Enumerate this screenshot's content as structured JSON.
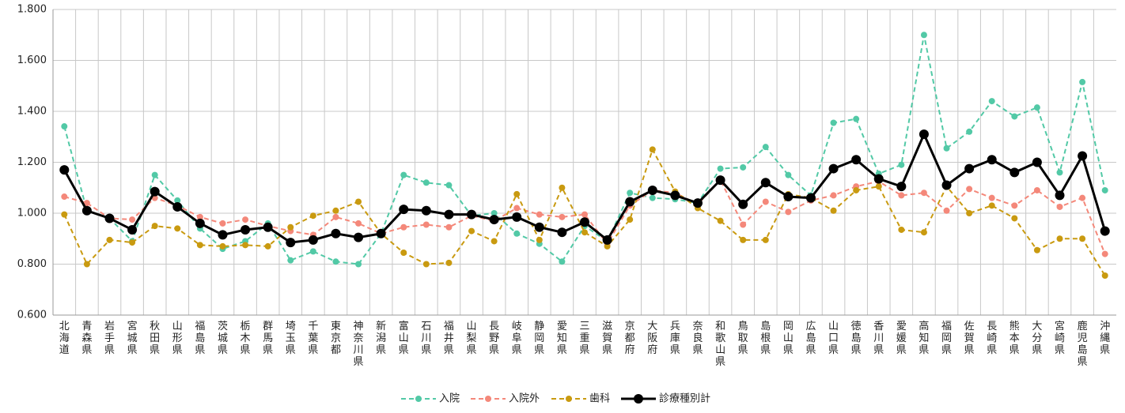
{
  "chart_data": {
    "type": "line",
    "categories": [
      "北海道",
      "青森県",
      "岩手県",
      "宮城県",
      "秋田県",
      "山形県",
      "福島県",
      "茨城県",
      "栃木県",
      "群馬県",
      "埼玉県",
      "千葉県",
      "東京都",
      "神奈川県",
      "新潟県",
      "富山県",
      "石川県",
      "福井県",
      "山梨県",
      "長野県",
      "岐阜県",
      "静岡県",
      "愛知県",
      "三重県",
      "滋賀県",
      "京都府",
      "大阪府",
      "兵庫県",
      "奈良県",
      "和歌山県",
      "鳥取県",
      "島根県",
      "岡山県",
      "広島県",
      "山口県",
      "徳島県",
      "香川県",
      "愛媛県",
      "高知県",
      "福岡県",
      "佐賀県",
      "長崎県",
      "熊本県",
      "大分県",
      "宮崎県",
      "鹿児島県",
      "沖縄県"
    ],
    "series": [
      {
        "name": "入院",
        "color": "#52c9a6",
        "dashed": true,
        "values": [
          1.341,
          1.01,
          0.98,
          0.89,
          1.15,
          1.05,
          0.94,
          0.86,
          0.89,
          0.96,
          0.815,
          0.85,
          0.81,
          0.8,
          0.92,
          1.15,
          1.12,
          1.11,
          0.99,
          1.0,
          0.92,
          0.88,
          0.81,
          0.95,
          0.89,
          1.08,
          1.06,
          1.055,
          1.04,
          1.175,
          1.18,
          1.26,
          1.15,
          1.07,
          1.355,
          1.37,
          1.155,
          1.19,
          1.7,
          1.255,
          1.32,
          1.44,
          1.38,
          1.415,
          1.16,
          1.515,
          1.09
        ]
      },
      {
        "name": "入院外",
        "color": "#f4887a",
        "dashed": true,
        "values": [
          1.065,
          1.04,
          0.98,
          0.975,
          1.06,
          1.03,
          0.985,
          0.96,
          0.975,
          0.95,
          0.93,
          0.915,
          0.985,
          0.96,
          0.92,
          0.945,
          0.955,
          0.945,
          0.99,
          0.97,
          1.02,
          0.995,
          0.985,
          0.995,
          0.88,
          1.03,
          1.09,
          1.08,
          1.035,
          1.13,
          0.955,
          1.045,
          1.005,
          1.05,
          1.07,
          1.105,
          1.125,
          1.07,
          1.08,
          1.01,
          1.095,
          1.06,
          1.03,
          1.09,
          1.025,
          1.06,
          0.84
        ]
      },
      {
        "name": "歯科",
        "color": "#c99a10",
        "dashed": true,
        "values": [
          0.995,
          0.8,
          0.895,
          0.885,
          0.95,
          0.94,
          0.875,
          0.87,
          0.875,
          0.87,
          0.945,
          0.99,
          1.01,
          1.045,
          0.92,
          0.845,
          0.8,
          0.805,
          0.93,
          0.89,
          1.075,
          0.895,
          1.1,
          0.925,
          0.87,
          0.975,
          1.25,
          1.085,
          1.02,
          0.97,
          0.895,
          0.895,
          1.075,
          1.06,
          1.01,
          1.09,
          1.105,
          0.935,
          0.925,
          1.105,
          1.0,
          1.03,
          0.98,
          0.855,
          0.9,
          0.9,
          0.755
        ]
      },
      {
        "name": "診療種別計",
        "color": "#000000",
        "dashed": false,
        "values": [
          1.17,
          1.01,
          0.98,
          0.935,
          1.085,
          1.025,
          0.96,
          0.915,
          0.935,
          0.945,
          0.885,
          0.895,
          0.92,
          0.905,
          0.92,
          1.015,
          1.01,
          0.995,
          0.995,
          0.975,
          0.985,
          0.945,
          0.925,
          0.965,
          0.895,
          1.045,
          1.09,
          1.07,
          1.04,
          1.13,
          1.035,
          1.12,
          1.065,
          1.06,
          1.175,
          1.21,
          1.135,
          1.105,
          1.31,
          1.11,
          1.175,
          1.21,
          1.16,
          1.2,
          1.07,
          1.225,
          0.93
        ]
      }
    ],
    "ylim": [
      0.6,
      1.8
    ],
    "yticks": [
      {
        "value": 0.6,
        "label": "0.600"
      },
      {
        "value": 0.8,
        "label": "0.800"
      },
      {
        "value": 1.0,
        "label": "1.000"
      },
      {
        "value": 1.2,
        "label": "1.200"
      },
      {
        "value": 1.4,
        "label": "1.400"
      },
      {
        "value": 1.6,
        "label": "1.600"
      },
      {
        "value": 1.8,
        "label": "1.800"
      }
    ],
    "grid": true,
    "legend": "bottom"
  }
}
